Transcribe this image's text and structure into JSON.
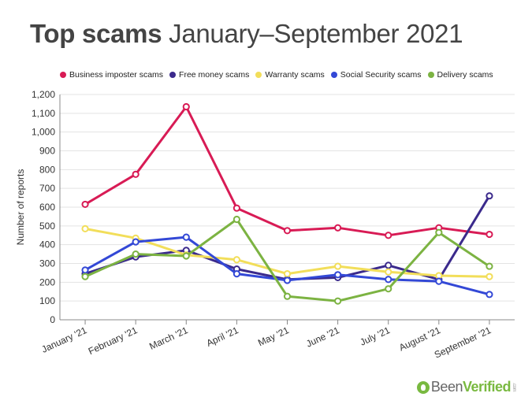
{
  "header": {
    "title_bold": "Top scams",
    "title_rest": " January–September 2021"
  },
  "logo": {
    "part1": "Been",
    "part2": "Verified",
    "suffix": ".com"
  },
  "chart_data": {
    "type": "line",
    "title": "Top scams January–September 2021",
    "xlabel": "",
    "ylabel": "Number of reports",
    "ylim": [
      0,
      1200
    ],
    "yticks": [
      0,
      100,
      200,
      300,
      400,
      500,
      600,
      700,
      800,
      900,
      1000,
      1100,
      1200
    ],
    "ytick_labels": [
      "0",
      "100",
      "200",
      "300",
      "400",
      "500",
      "600",
      "700",
      "800",
      "900",
      "1,000",
      "1,100",
      "1,200"
    ],
    "categories": [
      "January '21",
      "February '21",
      "March '21",
      "April '21",
      "May '21",
      "June '21",
      "July '21",
      "August '21",
      "September '21"
    ],
    "grid": true,
    "legend_position": "top",
    "series": [
      {
        "name": "Business imposter scams",
        "color": "#d81b55",
        "values": [
          615,
          775,
          1135,
          595,
          475,
          490,
          450,
          490,
          455
        ]
      },
      {
        "name": "Free money scams",
        "color": "#3b2a8c",
        "values": [
          245,
          335,
          370,
          270,
          215,
          225,
          290,
          215,
          660
        ]
      },
      {
        "name": "Warranty scams",
        "color": "#f2de5a",
        "values": [
          485,
          435,
          345,
          320,
          245,
          285,
          255,
          235,
          230
        ]
      },
      {
        "name": "Social Security scams",
        "color": "#3348d6",
        "values": [
          265,
          415,
          440,
          245,
          210,
          240,
          215,
          205,
          135
        ]
      },
      {
        "name": "Delivery scams",
        "color": "#7cb342",
        "values": [
          230,
          350,
          340,
          535,
          125,
          100,
          165,
          465,
          285
        ]
      }
    ]
  }
}
